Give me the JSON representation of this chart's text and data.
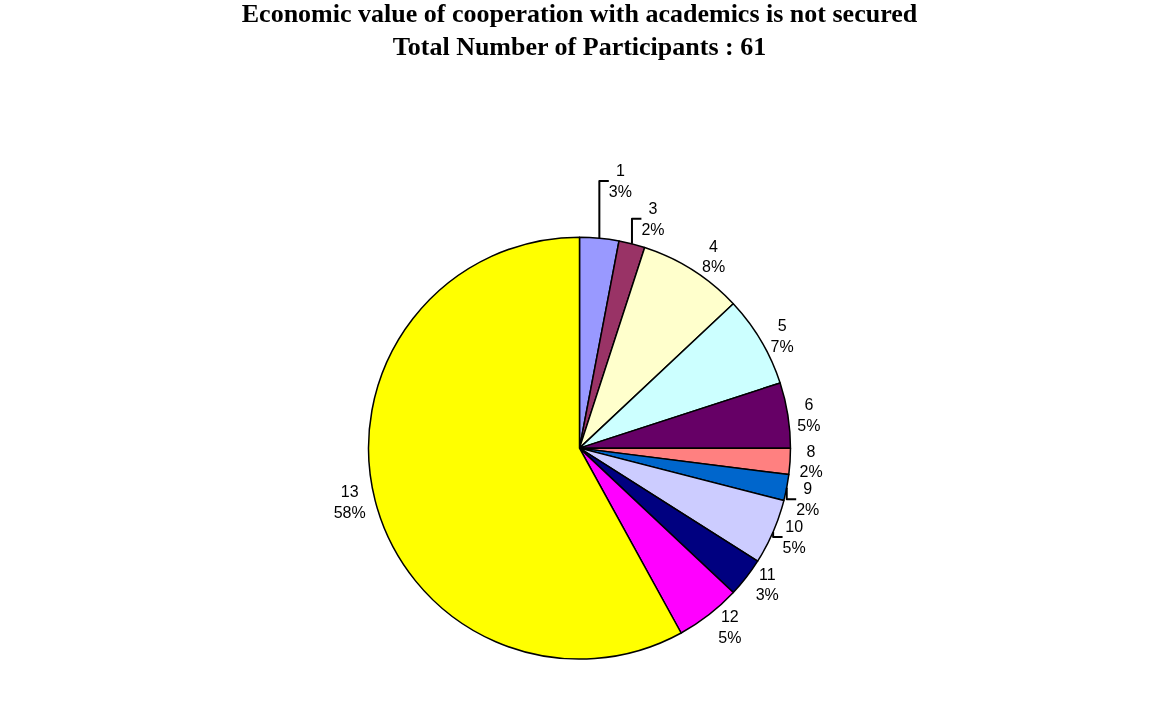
{
  "chart_data": {
    "type": "pie",
    "title": "Economic value of cooperation with academics is not secured",
    "subtitle": "Total Number of Participants : 61",
    "categories": [
      "1",
      "3",
      "4",
      "5",
      "6",
      "8",
      "9",
      "10",
      "11",
      "12",
      "13"
    ],
    "values": [
      3,
      2,
      8,
      7,
      5,
      2,
      2,
      5,
      3,
      5,
      58
    ],
    "value_labels": [
      "3%",
      "2%",
      "8%",
      "7%",
      "5%",
      "2%",
      "2%",
      "5%",
      "3%",
      "5%",
      "58%"
    ],
    "colors": [
      "#9999ff",
      "#993366",
      "#ffffcc",
      "#ccffff",
      "#660066",
      "#ff8080",
      "#0066cc",
      "#ccccff",
      "#000080",
      "#ff00ff",
      "#ffff00"
    ],
    "legend": false
  }
}
